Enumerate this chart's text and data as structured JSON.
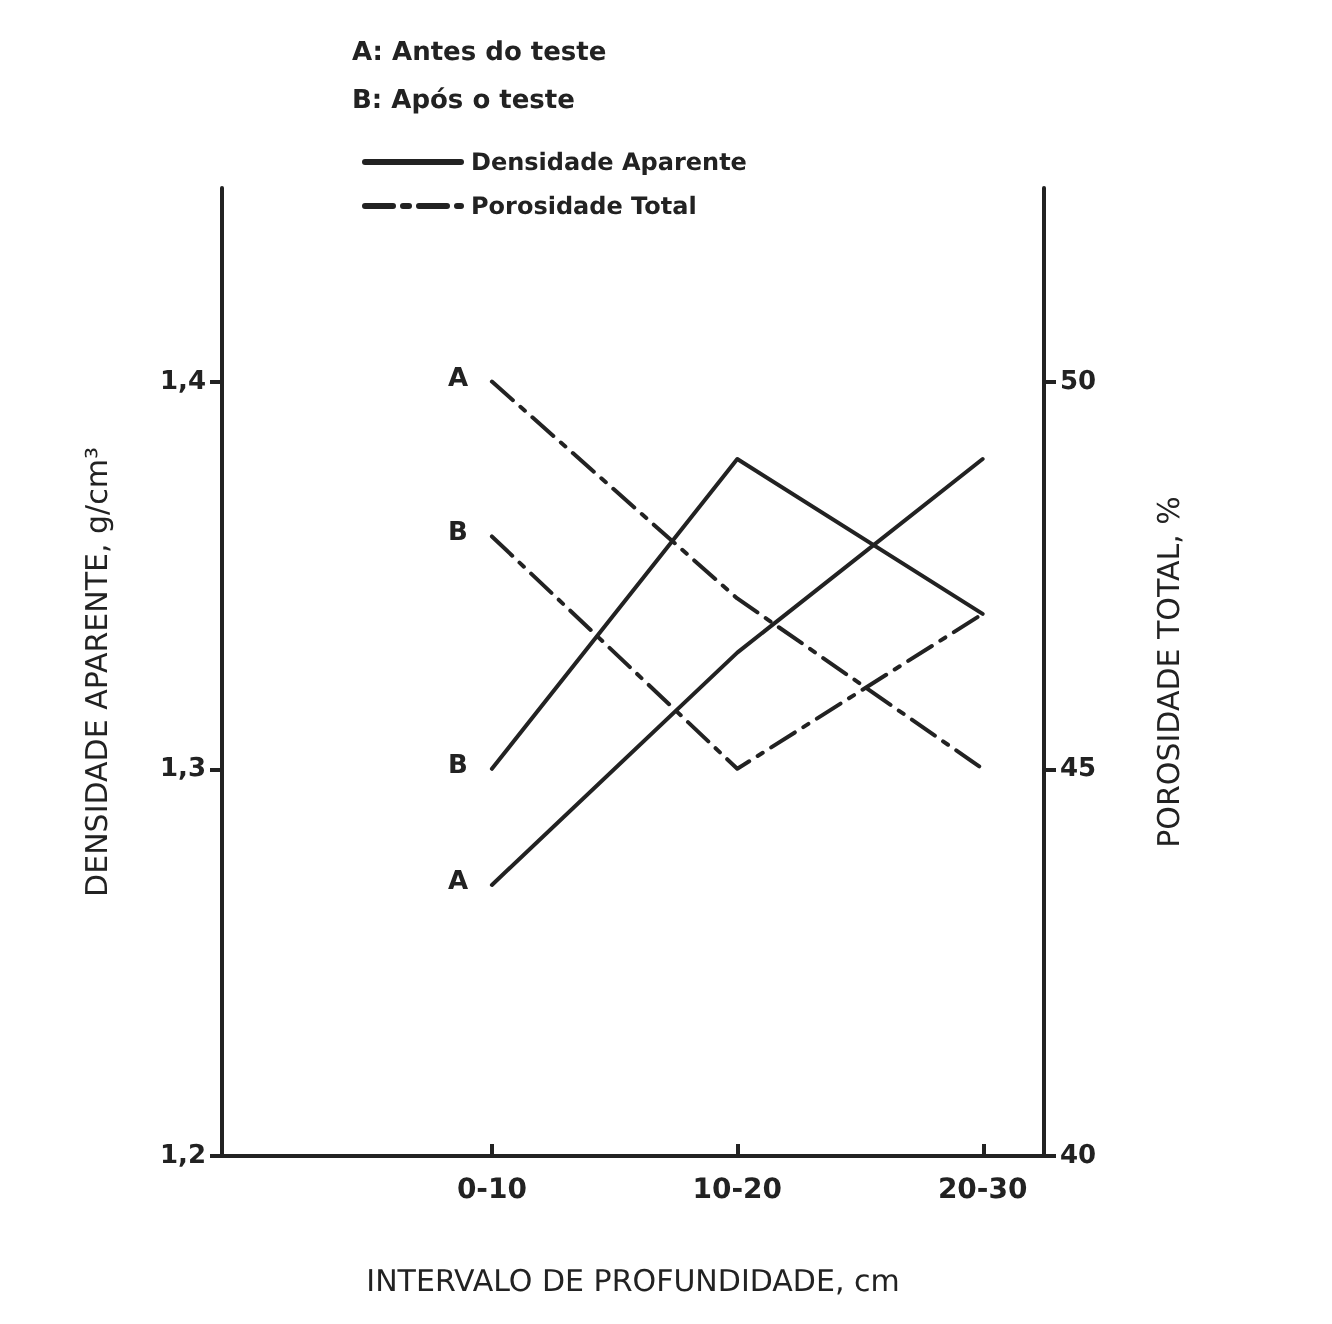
{
  "chart_data": {
    "type": "line",
    "xlabel": "INTERVALO DE PROFUNDIDADE, cm",
    "ylabel": "DENSIDADE APARENTE, g/cm³",
    "y2label": "POROSIDADE TOTAL, %",
    "categories": [
      "0-10",
      "10-20",
      "20-30"
    ],
    "series": [
      {
        "name": "Densidade Aparente",
        "color": "#222222",
        "line_style": "solid",
        "values": [
          1.27,
          1.33,
          1.38
        ]
      },
      {
        "color": "#222222",
        "line_style": "solid",
        "values": [
          1.3,
          1.38,
          1.34
        ]
      },
      {
        "name": "Porosidade Total",
        "color": "#222222",
        "line_style": "dashdot",
        "axis": "y2",
        "values": [
          50,
          47.2,
          45
        ]
      },
      {
        "color": "#222222",
        "line_style": "dashdot",
        "axis": "y2",
        "values": [
          48,
          45,
          47
        ]
      }
    ],
    "ylim": [
      1.2,
      1.45
    ],
    "yticks": [
      {
        "value": 1.2,
        "label": "1,2"
      },
      {
        "value": 1.3,
        "label": "1,3"
      },
      {
        "value": 1.4,
        "label": "1,4"
      }
    ],
    "y2lim": [
      40,
      52.5
    ],
    "y2ticks": [
      40,
      45,
      50
    ],
    "annotations": [
      "A: Antes do teste",
      "B: Após o teste",
      {
        "text": "A",
        "x": "0-10",
        "y": 1.4
      },
      {
        "text": "B",
        "x": "0-10",
        "y": 1.36
      },
      {
        "text": "B",
        "x": "0-10",
        "y": 1.3
      },
      {
        "text": "A",
        "x": "0-10",
        "y": 1.27
      }
    ],
    "legend": "top",
    "grid": false,
    "marker": "none"
  }
}
